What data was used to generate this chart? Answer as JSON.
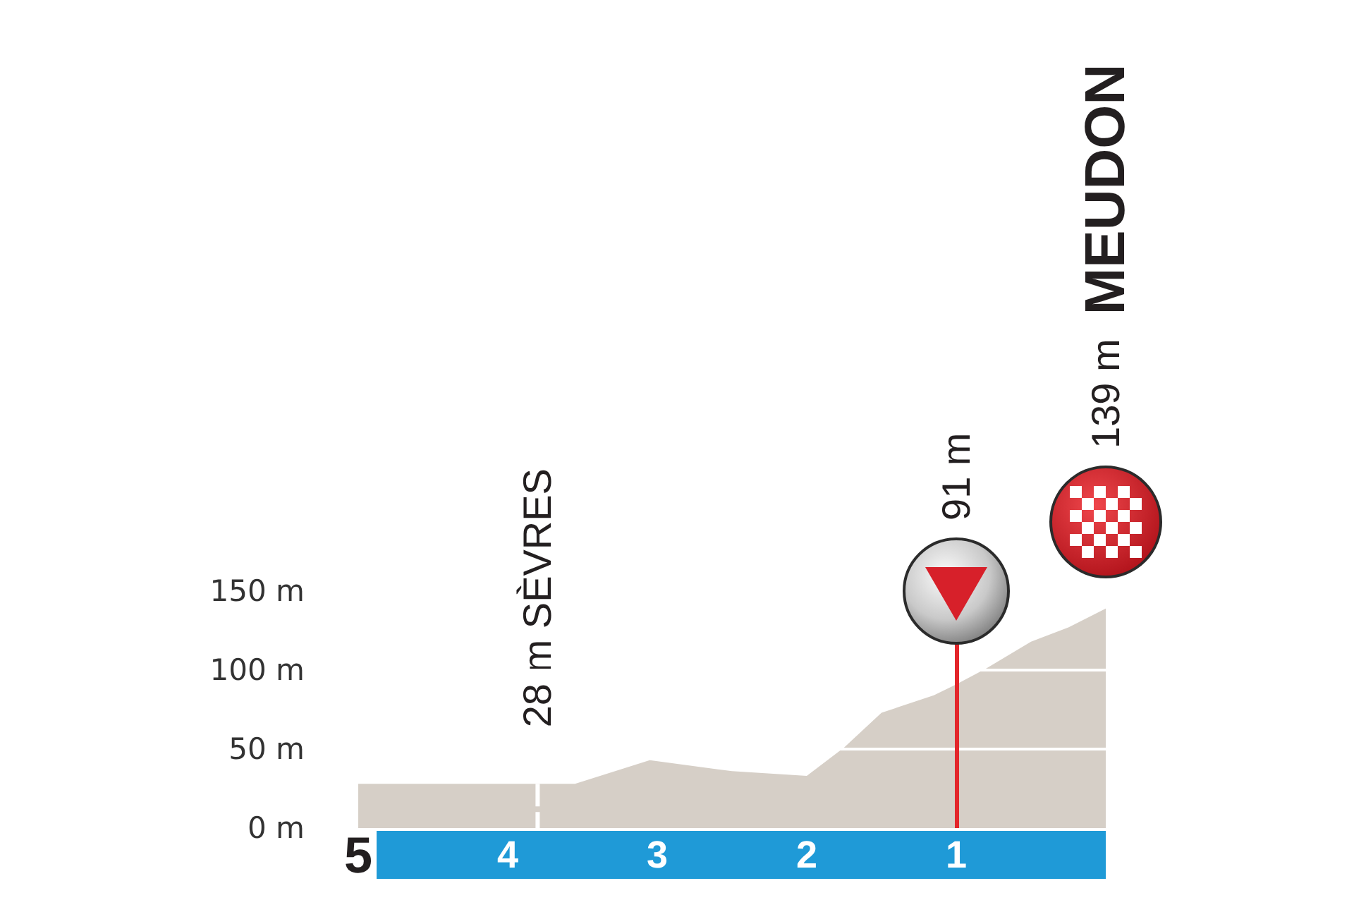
{
  "chart_data": {
    "type": "area",
    "x": [
      5,
      3.55,
      3.05,
      2.5,
      2,
      1.75,
      1.5,
      1.15,
      1,
      0.8,
      0.5,
      0.25,
      0
    ],
    "values": [
      28,
      28,
      43,
      36,
      33,
      51,
      73,
      84,
      91,
      101,
      118,
      127,
      139
    ],
    "color": "#d6cfc7",
    "xlim": [
      5,
      0
    ],
    "xticks": [
      5,
      4,
      3,
      2,
      1
    ],
    "ylim": [
      0,
      150
    ],
    "yticks": [
      {
        "value": 0,
        "label": "0 m"
      },
      {
        "value": 50,
        "label": "50 m"
      },
      {
        "value": 100,
        "label": "100 m"
      },
      {
        "value": 150,
        "label": "150 m"
      }
    ],
    "grid": "y",
    "ref_lines": [
      {
        "axis": "x",
        "value": 1,
        "label": "91 m",
        "color": "#e3262b"
      }
    ],
    "annotations": [
      {
        "text": "28 m SÈVRES",
        "x": 3.8,
        "y": 28
      },
      "139 m",
      "MEUDON"
    ]
  }
}
